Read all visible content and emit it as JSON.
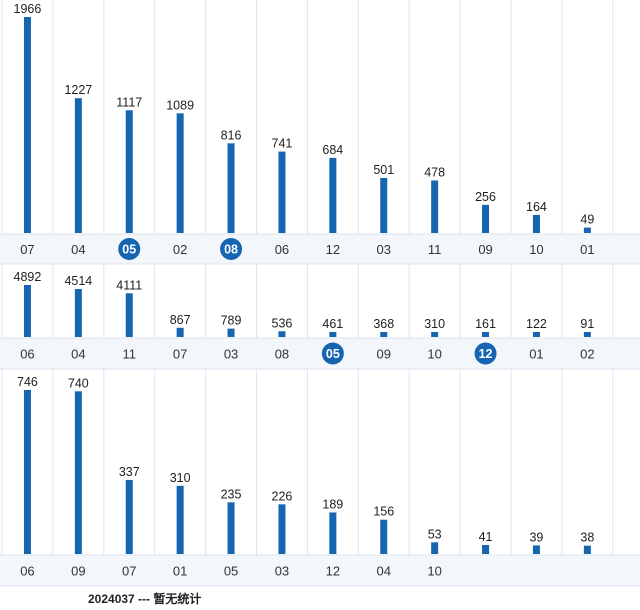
{
  "chart_data": [
    {
      "type": "bar",
      "categories": [
        "07",
        "04",
        "05",
        "02",
        "08",
        "06",
        "12",
        "03",
        "11",
        "09",
        "10",
        "01"
      ],
      "values": [
        1966,
        1227,
        1117,
        1089,
        816,
        741,
        684,
        501,
        478,
        256,
        164,
        49
      ],
      "highlighted": [
        "05",
        "08"
      ],
      "ylim": [
        0,
        1966
      ]
    },
    {
      "type": "bar",
      "categories": [
        "06",
        "04",
        "11",
        "07",
        "03",
        "08",
        "05",
        "09",
        "10",
        "12",
        "01",
        "02"
      ],
      "values": [
        4892,
        4514,
        4111,
        867,
        789,
        536,
        461,
        368,
        310,
        161,
        122,
        91
      ],
      "highlighted": [
        "05",
        "12"
      ],
      "ylim": [
        0,
        4892
      ]
    },
    {
      "type": "bar",
      "categories": [
        "06",
        "09",
        "07",
        "01",
        "05",
        "03",
        "12",
        "04",
        "10",
        "",
        "",
        ""
      ],
      "values": [
        746,
        740,
        337,
        310,
        235,
        226,
        189,
        156,
        53,
        41,
        39,
        38
      ],
      "highlighted": [],
      "ylim": [
        0,
        746
      ]
    }
  ],
  "colors": {
    "bar": "#1565b0",
    "highlight": "#1565b0",
    "band": "#f3f6fb",
    "grid": "#dfe5ee"
  },
  "footer": {
    "text": "2024037 --- 暂无统计"
  }
}
